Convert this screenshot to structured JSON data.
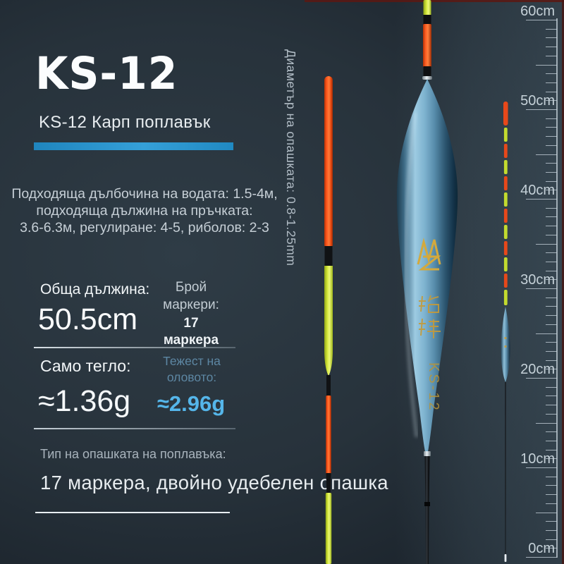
{
  "colors": {
    "accent": "#2b94cf",
    "highlight-blue": "#55b6ea",
    "muted-blue": "#5d87a3",
    "text-primary": "#f2f6f8",
    "text-secondary": "#c6cfd6",
    "float-orange": "#ff4a12",
    "float-chartreuse": "#cde22b",
    "float-body-blue": "#7fb0cd",
    "gold": "#c59a38"
  },
  "header": {
    "title": "KS-12",
    "subtitle": "KS-12 Карп поплавък"
  },
  "description": {
    "lines": [
      "Подходяща дълбочина на водата: 1.5-4м,",
      "подходяща дължина на пръчката:",
      "3.6-6.3м, регулиране: 4-5, риболов: 2-3"
    ]
  },
  "specs": {
    "total_length_label": "Обща дължина:",
    "total_length_value": "50.5cm",
    "markers_label": "Брой маркери:",
    "markers_value": "17 маркера",
    "self_weight_label": "Само тегло:",
    "self_weight_value": "≈1.36g",
    "lead_weight_label": "Тежест на оловото:",
    "lead_weight_value": "≈2.96g"
  },
  "tail_type": {
    "label": "Тип на опашката на поплавъка:",
    "value": "17 маркера, двойно удебелен опашка"
  },
  "vertical_note": "Диаметър на опашката: 0.8-1.25mm",
  "ruler": {
    "labels": [
      "60cm",
      "50cm",
      "40cm",
      "30cm",
      "20cm",
      "10cm",
      "0cm"
    ]
  },
  "float_markings": {
    "logo": "MZ",
    "brand_characters": "铭铮",
    "model": "KS-12"
  }
}
